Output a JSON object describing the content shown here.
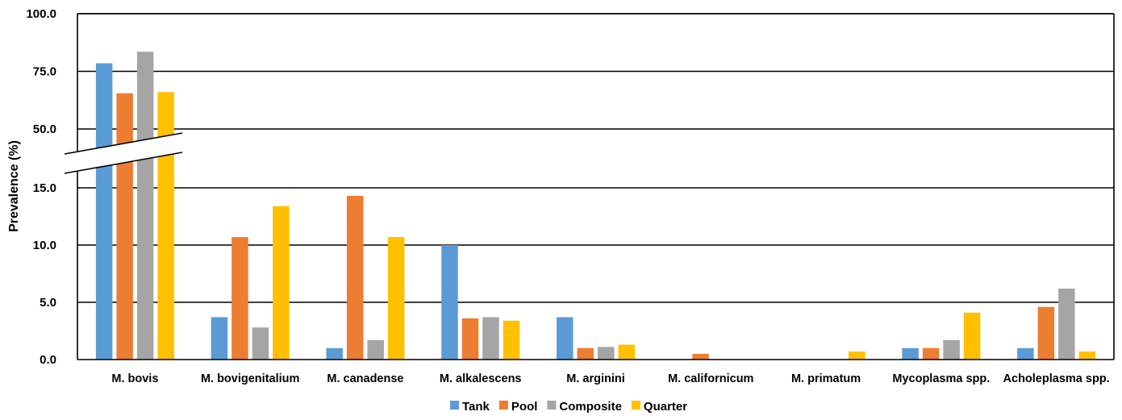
{
  "chart_data": {
    "type": "bar",
    "ylabel": "Prevalence (%)",
    "xlabel": "",
    "y_axis_break": {
      "lower_segment_max": 15,
      "upper_segment_min": 50
    },
    "ylim": [
      0,
      100
    ],
    "y_ticks": [
      "0.0",
      "5.0",
      "10.0",
      "15.0",
      "50.0",
      "75.0",
      "100.0"
    ],
    "grid": true,
    "legend_position": "bottom",
    "categories": [
      "M. bovis",
      "M. bovigenitalium",
      "M. canadense",
      "M. alkalescens",
      "M. arginini",
      "M. californicum",
      "M. primatum",
      "Mycoplasma spp.",
      "Acholeplasma spp."
    ],
    "series": [
      {
        "name": "Tank",
        "color": "#5B9BD5",
        "values": [
          78.5,
          3.7,
          1.0,
          10.0,
          3.7,
          0.0,
          0.0,
          1.0,
          1.0
        ]
      },
      {
        "name": "Pool",
        "color": "#ED7D31",
        "values": [
          65.5,
          10.7,
          14.3,
          3.6,
          1.0,
          0.5,
          0.0,
          1.0,
          4.6
        ]
      },
      {
        "name": "Composite",
        "color": "#A5A5A5",
        "values": [
          83.5,
          2.8,
          1.7,
          3.7,
          1.1,
          0.0,
          0.0,
          1.7,
          6.2
        ]
      },
      {
        "name": "Quarter",
        "color": "#FFC000",
        "values": [
          66.0,
          13.4,
          10.7,
          3.4,
          1.3,
          0.0,
          0.7,
          4.1,
          0.7
        ]
      }
    ]
  }
}
